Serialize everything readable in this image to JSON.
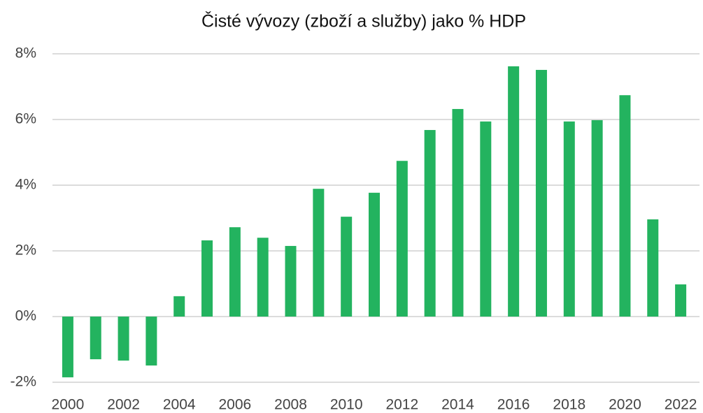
{
  "chart_data": {
    "type": "bar",
    "title": "Čisté vývozy (zboží a služby) jako % HDP",
    "categories": [
      "2000",
      null,
      "2002",
      null,
      "2004",
      null,
      "2006",
      null,
      "2008",
      null,
      "2010",
      null,
      "2012",
      null,
      "2014",
      null,
      "2016",
      null,
      "2018",
      null,
      "2020",
      null,
      "2022"
    ],
    "values": [
      -1.85,
      -1.3,
      -1.34,
      -1.49,
      0.62,
      2.32,
      2.72,
      2.4,
      2.15,
      3.89,
      3.04,
      3.77,
      4.74,
      5.68,
      6.32,
      5.94,
      7.62,
      7.51,
      5.94,
      5.98,
      6.74,
      2.96,
      0.98
    ],
    "color": "#23b35f",
    "ylim": [
      -2,
      8
    ],
    "yticks": [
      {
        "value": -2,
        "label": "-2%"
      },
      {
        "value": 0,
        "label": "0%"
      },
      {
        "value": 2,
        "label": "2%"
      },
      {
        "value": 4,
        "label": "4%"
      },
      {
        "value": 6,
        "label": "6%"
      },
      {
        "value": 8,
        "label": "8%"
      }
    ],
    "grid": true
  }
}
